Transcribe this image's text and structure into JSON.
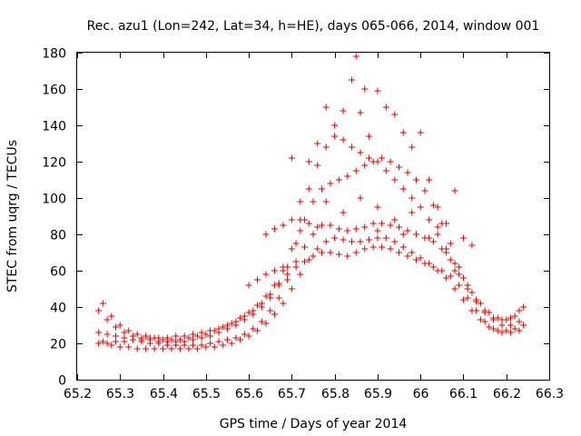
{
  "chart_data": {
    "type": "scatter",
    "title": "Rec. azu1 (Lon=242, Lat=34, h=HE), days 065-066, 2014, window 001",
    "xlabel": "GPS time / Days of year 2014",
    "ylabel": "STEC from uqrg / TECUs",
    "xlim": [
      65.2,
      66.3
    ],
    "ylim": [
      0,
      180
    ],
    "xticks": [
      "65.2",
      "65.3",
      "65.4",
      "65.5",
      "65.6",
      "65.7",
      "65.8",
      "65.9",
      "66",
      "66.1",
      "66.2",
      "66.3"
    ],
    "yticks": [
      "0",
      "20",
      "40",
      "60",
      "80",
      "100",
      "120",
      "140",
      "160",
      "180"
    ],
    "grid": false,
    "marker": "plus",
    "color": "#e00000",
    "series": [
      {
        "values": [
          [
            65.25,
            20
          ],
          [
            65.27,
            20
          ],
          [
            65.29,
            21
          ],
          [
            65.31,
            21
          ],
          [
            65.33,
            22
          ],
          [
            65.35,
            22
          ],
          [
            65.37,
            23
          ],
          [
            65.39,
            23
          ],
          [
            65.41,
            23
          ],
          [
            65.43,
            24
          ],
          [
            65.45,
            24
          ],
          [
            65.47,
            25
          ],
          [
            65.49,
            26
          ],
          [
            65.51,
            27
          ],
          [
            65.53,
            28
          ],
          [
            65.55,
            30
          ],
          [
            65.57,
            32
          ],
          [
            65.59,
            35
          ],
          [
            65.61,
            38
          ],
          [
            65.63,
            42
          ],
          [
            65.65,
            47
          ],
          [
            65.67,
            53
          ],
          [
            65.69,
            58
          ],
          [
            65.71,
            62
          ],
          [
            65.73,
            65
          ],
          [
            65.75,
            68
          ],
          [
            65.77,
            70
          ],
          [
            65.79,
            70
          ],
          [
            65.81,
            69
          ],
          [
            65.83,
            68
          ],
          [
            65.85,
            70
          ],
          [
            65.87,
            72
          ],
          [
            65.89,
            73
          ],
          [
            65.91,
            73
          ],
          [
            65.93,
            72
          ],
          [
            65.95,
            70
          ],
          [
            65.97,
            68
          ],
          [
            65.99,
            66
          ],
          [
            66.01,
            64
          ],
          [
            66.03,
            62
          ],
          [
            66.05,
            60
          ],
          [
            66.07,
            57
          ],
          [
            66.09,
            52
          ],
          [
            66.11,
            45
          ],
          [
            66.13,
            38
          ],
          [
            66.15,
            32
          ],
          [
            66.17,
            28
          ],
          [
            66.19,
            26
          ],
          [
            66.21,
            26
          ],
          [
            66.23,
            27
          ],
          [
            65.25,
            26
          ],
          [
            65.27,
            25
          ],
          [
            65.29,
            24
          ],
          [
            65.31,
            23
          ],
          [
            65.33,
            22
          ],
          [
            65.35,
            21
          ],
          [
            65.37,
            20
          ],
          [
            65.39,
            20
          ],
          [
            65.41,
            19
          ],
          [
            65.43,
            19
          ],
          [
            65.45,
            19
          ],
          [
            65.47,
            19
          ],
          [
            65.49,
            19
          ],
          [
            65.51,
            20
          ],
          [
            65.53,
            21
          ],
          [
            65.55,
            22
          ],
          [
            65.57,
            23
          ],
          [
            65.59,
            25
          ],
          [
            65.61,
            28
          ],
          [
            65.63,
            32
          ],
          [
            65.65,
            38
          ],
          [
            65.67,
            45
          ],
          [
            65.69,
            55
          ],
          [
            65.71,
            65
          ],
          [
            65.73,
            73
          ],
          [
            65.75,
            80
          ],
          [
            65.77,
            85
          ],
          [
            65.79,
            85
          ],
          [
            65.81,
            83
          ],
          [
            65.83,
            82
          ],
          [
            65.85,
            83
          ],
          [
            65.87,
            84
          ],
          [
            65.89,
            86
          ],
          [
            65.91,
            86
          ],
          [
            65.93,
            85
          ],
          [
            65.95,
            84
          ],
          [
            65.97,
            82
          ],
          [
            65.99,
            80
          ],
          [
            66.01,
            78
          ],
          [
            66.03,
            76
          ],
          [
            66.05,
            72
          ],
          [
            66.07,
            66
          ],
          [
            66.09,
            58
          ],
          [
            66.11,
            50
          ],
          [
            66.13,
            43
          ],
          [
            66.15,
            37
          ],
          [
            66.17,
            33
          ],
          [
            66.19,
            30
          ],
          [
            66.21,
            30
          ],
          [
            66.23,
            32
          ],
          [
            65.25,
            38
          ],
          [
            65.27,
            33
          ],
          [
            65.29,
            29
          ],
          [
            65.31,
            26
          ],
          [
            65.33,
            24
          ],
          [
            65.35,
            23
          ],
          [
            65.37,
            22
          ],
          [
            65.39,
            21
          ],
          [
            65.41,
            21
          ],
          [
            65.43,
            21
          ],
          [
            65.45,
            21
          ],
          [
            65.47,
            22
          ],
          [
            65.49,
            23
          ],
          [
            65.51,
            24
          ],
          [
            65.53,
            26
          ],
          [
            65.55,
            28
          ],
          [
            65.57,
            30
          ],
          [
            65.59,
            33
          ],
          [
            65.61,
            36
          ],
          [
            65.63,
            40
          ],
          [
            65.65,
            45
          ],
          [
            65.67,
            52
          ],
          [
            65.69,
            62
          ],
          [
            65.71,
            75
          ],
          [
            65.73,
            88
          ],
          [
            65.75,
            98
          ],
          [
            65.77,
            105
          ],
          [
            65.79,
            108
          ],
          [
            65.81,
            110
          ],
          [
            65.83,
            112
          ],
          [
            65.85,
            115
          ],
          [
            65.87,
            118
          ],
          [
            65.89,
            120
          ],
          [
            65.91,
            122
          ],
          [
            65.93,
            120
          ],
          [
            65.95,
            117
          ],
          [
            65.97,
            114
          ],
          [
            65.99,
            110
          ],
          [
            66.01,
            104
          ],
          [
            66.03,
            96
          ],
          [
            66.05,
            86
          ],
          [
            66.07,
            75
          ],
          [
            66.09,
            62
          ],
          [
            66.11,
            52
          ],
          [
            66.13,
            44
          ],
          [
            66.15,
            38
          ],
          [
            66.17,
            34
          ],
          [
            66.19,
            33
          ],
          [
            66.21,
            34
          ],
          [
            66.23,
            38
          ],
          [
            65.26,
            42
          ],
          [
            65.28,
            35
          ],
          [
            65.3,
            30
          ],
          [
            65.32,
            27
          ],
          [
            65.34,
            25
          ],
          [
            65.36,
            24
          ],
          [
            65.38,
            23
          ],
          [
            65.4,
            22
          ],
          [
            65.42,
            22
          ],
          [
            65.44,
            22
          ],
          [
            65.46,
            23
          ],
          [
            65.48,
            24
          ],
          [
            65.5,
            25
          ],
          [
            65.52,
            27
          ],
          [
            65.54,
            29
          ],
          [
            65.56,
            31
          ],
          [
            65.58,
            34
          ],
          [
            65.6,
            37
          ],
          [
            65.62,
            41
          ],
          [
            65.64,
            46
          ],
          [
            65.66,
            52
          ],
          [
            65.68,
            60
          ],
          [
            65.7,
            72
          ],
          [
            65.72,
            88
          ],
          [
            65.74,
            105
          ],
          [
            65.76,
            118
          ],
          [
            65.78,
            128
          ],
          [
            65.8,
            134
          ],
          [
            65.82,
            132
          ],
          [
            65.84,
            128
          ],
          [
            65.86,
            125
          ],
          [
            65.88,
            122
          ],
          [
            65.9,
            120
          ],
          [
            65.92,
            115
          ],
          [
            65.94,
            110
          ],
          [
            65.96,
            105
          ],
          [
            65.98,
            100
          ],
          [
            66.0,
            95
          ],
          [
            66.02,
            88
          ],
          [
            66.04,
            80
          ],
          [
            66.06,
            72
          ],
          [
            66.08,
            64
          ],
          [
            66.1,
            56
          ],
          [
            66.12,
            48
          ],
          [
            66.14,
            42
          ],
          [
            66.16,
            37
          ],
          [
            66.18,
            34
          ],
          [
            66.2,
            33
          ],
          [
            66.22,
            35
          ],
          [
            66.24,
            40
          ],
          [
            65.26,
            21
          ],
          [
            65.28,
            19
          ],
          [
            65.3,
            18
          ],
          [
            65.32,
            18
          ],
          [
            65.34,
            17
          ],
          [
            65.36,
            17
          ],
          [
            65.38,
            17
          ],
          [
            65.4,
            17
          ],
          [
            65.42,
            17
          ],
          [
            65.44,
            17
          ],
          [
            65.46,
            17
          ],
          [
            65.48,
            17
          ],
          [
            65.5,
            18
          ],
          [
            65.52,
            18
          ],
          [
            65.54,
            19
          ],
          [
            65.56,
            20
          ],
          [
            65.58,
            22
          ],
          [
            65.6,
            24
          ],
          [
            65.62,
            27
          ],
          [
            65.64,
            31
          ],
          [
            65.66,
            36
          ],
          [
            65.68,
            42
          ],
          [
            65.7,
            50
          ],
          [
            65.72,
            58
          ],
          [
            65.74,
            66
          ],
          [
            65.76,
            72
          ],
          [
            65.78,
            76
          ],
          [
            65.8,
            78
          ],
          [
            65.82,
            77
          ],
          [
            65.84,
            76
          ],
          [
            65.86,
            76
          ],
          [
            65.88,
            77
          ],
          [
            65.9,
            78
          ],
          [
            65.92,
            78
          ],
          [
            65.94,
            76
          ],
          [
            65.96,
            73
          ],
          [
            65.98,
            70
          ],
          [
            66.0,
            67
          ],
          [
            66.02,
            64
          ],
          [
            66.04,
            60
          ],
          [
            66.06,
            56
          ],
          [
            66.08,
            50
          ],
          [
            66.1,
            44
          ],
          [
            66.12,
            38
          ],
          [
            66.14,
            33
          ],
          [
            66.16,
            29
          ],
          [
            66.18,
            27
          ],
          [
            66.2,
            27
          ],
          [
            66.22,
            28
          ],
          [
            66.24,
            30
          ],
          [
            65.72,
            98
          ],
          [
            65.74,
            120
          ],
          [
            65.76,
            130
          ],
          [
            65.78,
            150
          ],
          [
            65.8,
            140
          ],
          [
            65.82,
            148
          ],
          [
            65.84,
            165
          ],
          [
            65.85,
            178
          ],
          [
            65.86,
            147
          ],
          [
            65.87,
            160
          ],
          [
            65.88,
            134
          ],
          [
            65.9,
            159
          ],
          [
            65.92,
            150
          ],
          [
            65.94,
            146
          ],
          [
            65.96,
            136
          ],
          [
            65.98,
            128
          ],
          [
            66.0,
            136
          ],
          [
            66.02,
            110
          ],
          [
            66.04,
            95
          ],
          [
            66.06,
            86
          ],
          [
            66.08,
            104
          ],
          [
            66.1,
            78
          ],
          [
            66.12,
            74
          ],
          [
            65.7,
            122
          ],
          [
            65.78,
            98
          ],
          [
            65.82,
            92
          ],
          [
            65.86,
            100
          ],
          [
            65.9,
            95
          ],
          [
            65.94,
            88
          ],
          [
            65.98,
            92
          ],
          [
            66.02,
            78
          ],
          [
            66.06,
            70
          ],
          [
            65.64,
            80
          ],
          [
            65.66,
            83
          ],
          [
            65.68,
            85
          ],
          [
            65.7,
            88
          ],
          [
            65.72,
            82
          ],
          [
            65.74,
            86
          ],
          [
            65.76,
            84
          ],
          [
            65.9,
            82
          ],
          [
            65.96,
            80
          ],
          [
            66.04,
            84
          ],
          [
            66.08,
            60
          ],
          [
            65.6,
            52
          ],
          [
            65.62,
            55
          ],
          [
            65.64,
            58
          ],
          [
            65.66,
            60
          ],
          [
            65.68,
            62
          ]
        ]
      }
    ]
  }
}
